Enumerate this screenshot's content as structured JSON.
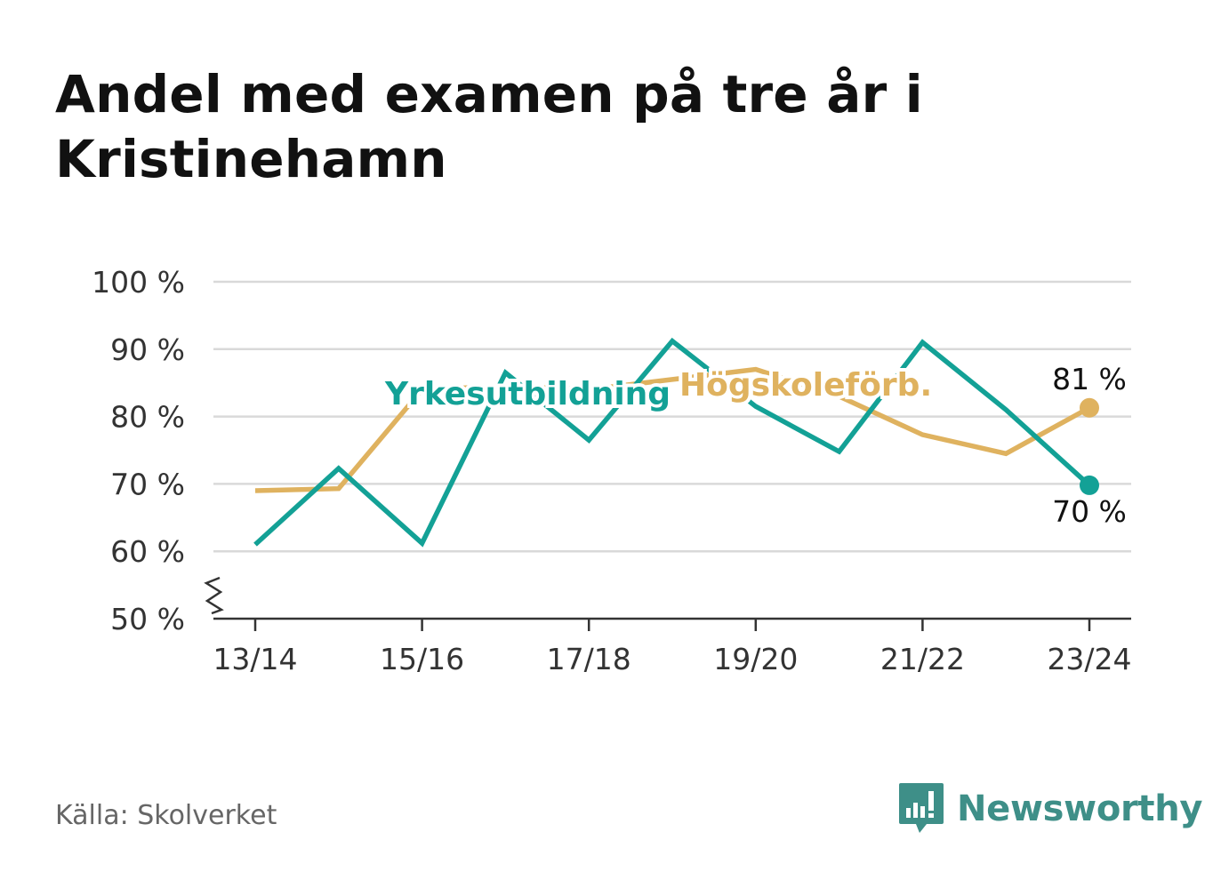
{
  "title": "Andel med examen på tre år i Kristinehamn",
  "source": "Källa: Skolverket",
  "brand": {
    "name": "Newsworthy",
    "color": "#3e8f88",
    "icon": "bar-chart-speech-bubble-icon"
  },
  "colors": {
    "yrke": "#13a196",
    "hogskole": "#dfb25f",
    "grid": "#d9d9d9",
    "axis": "#333333"
  },
  "chart_data": {
    "type": "line",
    "x": [
      "13/14",
      "14/15",
      "15/16",
      "16/17",
      "17/18",
      "18/19",
      "19/20",
      "20/21",
      "21/22",
      "22/23",
      "23/24"
    ],
    "x_tick_labels": [
      "13/14",
      "15/16",
      "17/18",
      "19/20",
      "21/22",
      "23/24"
    ],
    "ylim": [
      50,
      100
    ],
    "y_ticks": [
      100,
      90,
      80,
      70,
      60,
      50
    ],
    "y_tick_labels": [
      "100 %",
      "90 %",
      "80 %",
      "70 %",
      "60 %",
      "50 %"
    ],
    "y_axis_break": true,
    "grid": true,
    "series": [
      {
        "name": "Högskoleförb.",
        "color": "#dfb25f",
        "values": [
          69,
          69.3,
          84,
          84.5,
          84,
          85.5,
          87,
          83,
          77.3,
          74.5,
          81.3
        ],
        "end_label": "81 %"
      },
      {
        "name": "Yrkesutbildning",
        "color": "#13a196",
        "values": [
          61,
          72.3,
          61.2,
          86.5,
          76.5,
          91.2,
          81.5,
          74.8,
          91,
          81,
          69.8
        ],
        "end_label": "70 %"
      }
    ]
  }
}
